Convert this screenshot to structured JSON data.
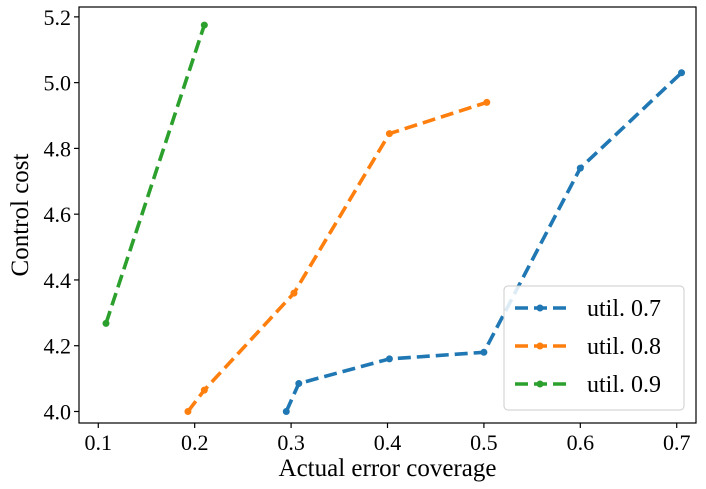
{
  "chart_data": {
    "type": "line",
    "title": "",
    "xlabel": "Actual error coverage",
    "ylabel": "Control cost",
    "xlim": [
      0.08,
      0.72
    ],
    "ylim": [
      3.965,
      5.23
    ],
    "xticks": [
      0.1,
      0.2,
      0.3,
      0.4,
      0.5,
      0.6,
      0.7
    ],
    "xtick_labels": [
      "0.1",
      "0.2",
      "0.3",
      "0.4",
      "0.5",
      "0.6",
      "0.7"
    ],
    "yticks": [
      4.0,
      4.2,
      4.4,
      4.6,
      4.8,
      5.0,
      5.2
    ],
    "ytick_labels": [
      "4.0",
      "4.2",
      "4.4",
      "4.6",
      "4.8",
      "5.0",
      "5.2"
    ],
    "grid": false,
    "legend_position": "lower-right",
    "line_style": "dashed",
    "series": [
      {
        "name": "util. 0.7",
        "color": "#1f77b4",
        "x": [
          0.295,
          0.308,
          0.402,
          0.5,
          0.6,
          0.705
        ],
        "y": [
          4.0,
          4.085,
          4.16,
          4.18,
          4.74,
          5.03
        ]
      },
      {
        "name": "util. 0.8",
        "color": "#ff7f0e",
        "x": [
          0.193,
          0.21,
          0.303,
          0.402,
          0.503
        ],
        "y": [
          4.0,
          4.065,
          4.36,
          4.845,
          4.94
        ]
      },
      {
        "name": "util. 0.9",
        "color": "#2ca02c",
        "x": [
          0.108,
          0.21
        ],
        "y": [
          4.268,
          5.175
        ]
      }
    ]
  }
}
